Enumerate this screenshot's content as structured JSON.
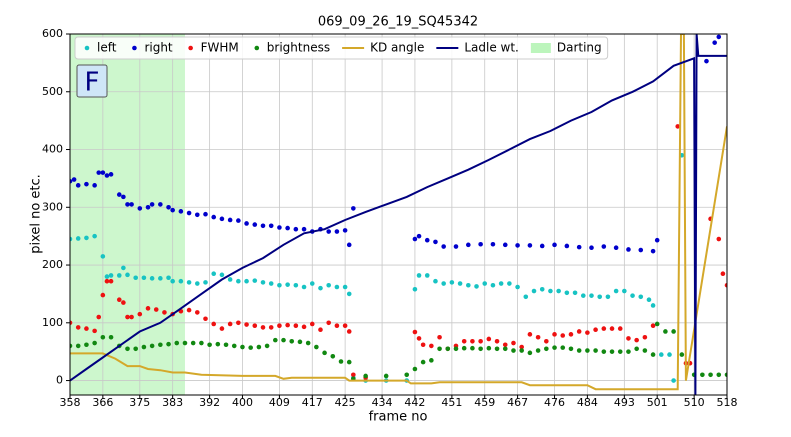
{
  "chart_data": {
    "type": "scatter",
    "title": "069_09_26_19_SQ45342",
    "x_label": "frame no",
    "y_label": "pixel no etc.",
    "annotation": "F",
    "xlim": [
      358,
      518
    ],
    "xticks": [
      358,
      366,
      375,
      383,
      392,
      400,
      409,
      417,
      425,
      434,
      442,
      451,
      459,
      467,
      476,
      484,
      493,
      501,
      510,
      518
    ],
    "ylim": [
      -25,
      600
    ],
    "yticks": [
      0,
      100,
      200,
      300,
      400,
      500,
      600
    ],
    "grid": true,
    "legend": "upper left",
    "series": [
      {
        "name": "left",
        "kind": "scatter",
        "color": "#17c3c3",
        "x": [
          358,
          360,
          362,
          364,
          366,
          367,
          368,
          370,
          371,
          372,
          374,
          376,
          378,
          380,
          382,
          383,
          385,
          387,
          389,
          391,
          393,
          395,
          397,
          399,
          401,
          403,
          405,
          407,
          409,
          411,
          413,
          415,
          417,
          419,
          421,
          423,
          425,
          426,
          427,
          430,
          435,
          440,
          442,
          443,
          445,
          447,
          449,
          451,
          453,
          455,
          457,
          459,
          461,
          463,
          465,
          467,
          469,
          471,
          473,
          475,
          477,
          479,
          481,
          483,
          485,
          487,
          489,
          491,
          493,
          495,
          497,
          499,
          500,
          502,
          504,
          505,
          507
        ],
        "values": [
          245,
          246,
          247,
          250,
          215,
          180,
          182,
          182,
          195,
          183,
          178,
          178,
          177,
          177,
          178,
          172,
          172,
          170,
          168,
          170,
          185,
          183,
          175,
          172,
          172,
          173,
          170,
          168,
          165,
          166,
          165,
          162,
          168,
          160,
          165,
          162,
          162,
          150,
          5,
          0,
          0,
          0,
          158,
          182,
          182,
          172,
          168,
          170,
          168,
          165,
          163,
          168,
          165,
          168,
          168,
          162,
          145,
          155,
          158,
          155,
          155,
          152,
          152,
          147,
          147,
          145,
          145,
          155,
          155,
          147,
          145,
          140,
          130,
          45,
          45,
          0,
          390
        ]
      },
      {
        "name": "right",
        "kind": "scatter",
        "color": "#0000cc",
        "x": [
          358,
          359,
          360,
          362,
          364,
          365,
          366,
          367,
          368,
          370,
          371,
          372,
          373,
          375,
          377,
          378,
          380,
          382,
          383,
          385,
          387,
          389,
          391,
          393,
          395,
          397,
          399,
          401,
          403,
          405,
          407,
          409,
          411,
          413,
          415,
          417,
          419,
          421,
          423,
          425,
          426,
          427,
          442,
          443,
          445,
          447,
          449,
          452,
          455,
          458,
          461,
          464,
          467,
          470,
          473,
          476,
          479,
          482,
          485,
          488,
          491,
          494,
          497,
          500,
          501,
          513,
          515,
          516
        ],
        "values": [
          345,
          348,
          338,
          340,
          338,
          360,
          360,
          355,
          357,
          322,
          318,
          305,
          305,
          298,
          300,
          305,
          305,
          300,
          295,
          293,
          290,
          287,
          288,
          283,
          280,
          278,
          277,
          272,
          270,
          268,
          268,
          265,
          264,
          262,
          262,
          258,
          262,
          258,
          258,
          260,
          235,
          298,
          245,
          250,
          243,
          240,
          232,
          232,
          235,
          236,
          236,
          235,
          234,
          234,
          233,
          235,
          233,
          231,
          230,
          232,
          230,
          227,
          226,
          224,
          243,
          553,
          585,
          595
        ]
      },
      {
        "name": "FWHM",
        "kind": "scatter",
        "color": "#ee1111",
        "x": [
          358,
          360,
          362,
          364,
          365,
          366,
          367,
          368,
          370,
          371,
          372,
          373,
          375,
          377,
          379,
          381,
          383,
          385,
          387,
          389,
          391,
          393,
          395,
          397,
          399,
          401,
          403,
          405,
          407,
          409,
          411,
          413,
          415,
          417,
          419,
          421,
          423,
          425,
          426,
          427,
          430,
          442,
          443,
          444,
          446,
          448,
          450,
          452,
          454,
          456,
          458,
          460,
          462,
          464,
          466,
          468,
          470,
          472,
          474,
          476,
          478,
          480,
          482,
          484,
          486,
          488,
          490,
          492,
          494,
          496,
          498,
          500,
          506,
          508,
          509,
          514,
          516,
          517,
          518
        ],
        "values": [
          100,
          92,
          90,
          86,
          110,
          148,
          172,
          172,
          140,
          135,
          110,
          110,
          115,
          125,
          123,
          118,
          115,
          120,
          122,
          118,
          107,
          98,
          90,
          98,
          100,
          97,
          95,
          92,
          92,
          95,
          96,
          95,
          93,
          98,
          88,
          100,
          95,
          95,
          85,
          10,
          5,
          84,
          73,
          62,
          60,
          75,
          55,
          60,
          68,
          68,
          68,
          72,
          68,
          62,
          65,
          58,
          80,
          75,
          68,
          80,
          78,
          80,
          85,
          83,
          88,
          90,
          90,
          90,
          73,
          70,
          75,
          95,
          440,
          30,
          30,
          280,
          245,
          185,
          165
        ]
      },
      {
        "name": "brightness",
        "kind": "scatter",
        "color": "#118811",
        "x": [
          358,
          360,
          362,
          364,
          366,
          368,
          370,
          372,
          374,
          376,
          378,
          380,
          382,
          384,
          386,
          388,
          390,
          392,
          394,
          396,
          398,
          400,
          402,
          404,
          406,
          408,
          410,
          412,
          414,
          416,
          418,
          420,
          422,
          424,
          426,
          427,
          430,
          435,
          440,
          442,
          444,
          446,
          448,
          450,
          452,
          454,
          456,
          458,
          460,
          462,
          464,
          466,
          468,
          470,
          472,
          474,
          476,
          478,
          480,
          482,
          484,
          486,
          488,
          490,
          492,
          494,
          496,
          498,
          500,
          501,
          503,
          505,
          507,
          510,
          512,
          514,
          516,
          518
        ],
        "values": [
          60,
          60,
          62,
          65,
          75,
          75,
          60,
          55,
          55,
          58,
          60,
          62,
          63,
          65,
          65,
          65,
          65,
          62,
          63,
          62,
          60,
          58,
          57,
          58,
          60,
          70,
          70,
          68,
          67,
          65,
          58,
          48,
          42,
          33,
          32,
          3,
          8,
          8,
          10,
          20,
          32,
          35,
          55,
          55,
          55,
          56,
          56,
          55,
          56,
          55,
          55,
          52,
          52,
          48,
          52,
          55,
          57,
          57,
          55,
          52,
          52,
          52,
          50,
          50,
          50,
          50,
          55,
          52,
          45,
          98,
          85,
          85,
          45,
          10,
          10,
          10,
          10,
          10
        ]
      },
      {
        "name": "KD angle",
        "kind": "line",
        "color": "#d4a82a",
        "x": [
          358,
          366,
          369,
          372,
          375,
          377,
          380,
          383,
          386,
          390,
          400,
          408,
          410,
          412,
          420,
          425,
          426,
          440,
          441,
          446,
          448,
          468,
          470,
          484,
          486,
          506,
          506.8,
          507.5,
          508,
          518
        ],
        "values": [
          47,
          47,
          38,
          25,
          25,
          20,
          18,
          14,
          14,
          10,
          8,
          8,
          3,
          5,
          5,
          5,
          0,
          0,
          -5,
          -5,
          -3,
          -3,
          -8,
          -8,
          -15,
          -15,
          600,
          600,
          0,
          440
        ]
      },
      {
        "name": "Ladle wt.",
        "kind": "line",
        "color": "#000080",
        "x": [
          358,
          362,
          366,
          370,
          375,
          380,
          385,
          390,
          395,
          400,
          405,
          410,
          415,
          420,
          425,
          430,
          435,
          440,
          445,
          450,
          455,
          460,
          465,
          470,
          475,
          480,
          485,
          490,
          495,
          500,
          505,
          510,
          510.3,
          510.6,
          511,
          515,
          518
        ],
        "values": [
          0,
          20,
          40,
          60,
          85,
          100,
          125,
          150,
          175,
          195,
          212,
          235,
          255,
          262,
          278,
          292,
          305,
          318,
          335,
          350,
          365,
          382,
          400,
          418,
          432,
          450,
          465,
          485,
          500,
          518,
          545,
          558,
          -25,
          600,
          562,
          562,
          562
        ]
      }
    ],
    "spans": [
      {
        "name": "Darting",
        "color": "#90ee90",
        "x": [
          358,
          386
        ]
      }
    ]
  }
}
